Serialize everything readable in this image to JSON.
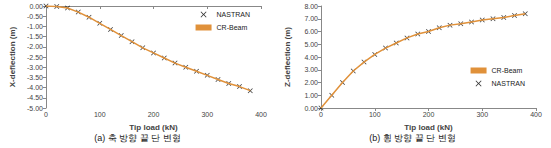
{
  "chart_data": [
    {
      "type": "line",
      "title": "(a) 축 방향 끝 단 변형",
      "x_label": "Tip load (kN)",
      "y_label": "X-deflection (m)",
      "xlim": [
        0,
        400
      ],
      "xticks": [
        0,
        100,
        200,
        300,
        400
      ],
      "ylim": [
        -5,
        0
      ],
      "yticks": [
        {
          "value": -5,
          "label": "-5.00"
        },
        {
          "value": -4.5,
          "label": "-4.50"
        },
        {
          "value": -4,
          "label": "-4.00"
        },
        {
          "value": -3.5,
          "label": "-3.50"
        },
        {
          "value": -3,
          "label": "-3.00"
        },
        {
          "value": -2.5,
          "label": "-2.50"
        },
        {
          "value": -2,
          "label": "-2.00"
        },
        {
          "value": -1.5,
          "label": "-1.50"
        },
        {
          "value": -1,
          "label": "-1.00"
        },
        {
          "value": -0.5,
          "label": "-0.50"
        },
        {
          "value": 0,
          "label": "0.00"
        }
      ],
      "grid": false,
      "legend": "upper right",
      "x": [
        0,
        20,
        40,
        60,
        80,
        100,
        120,
        140,
        160,
        180,
        200,
        220,
        240,
        260,
        280,
        300,
        320,
        340,
        360,
        380
      ],
      "series": [
        {
          "name": "NASTRAN",
          "type": "scatter",
          "marker": "x",
          "color": "#000000",
          "values": [
            0,
            -0.02,
            -0.1,
            -0.3,
            -0.55,
            -0.85,
            -1.15,
            -1.45,
            -1.75,
            -2.05,
            -2.3,
            -2.55,
            -2.8,
            -3.0,
            -3.2,
            -3.4,
            -3.6,
            -3.8,
            -3.95,
            -4.15
          ]
        },
        {
          "name": "CR-Beam",
          "type": "line",
          "line_style": "solid",
          "color": "#e0913a",
          "values": [
            0,
            -0.02,
            -0.1,
            -0.3,
            -0.55,
            -0.85,
            -1.15,
            -1.45,
            -1.75,
            -2.05,
            -2.3,
            -2.55,
            -2.8,
            -3.0,
            -3.2,
            -3.4,
            -3.6,
            -3.8,
            -3.95,
            -4.15
          ]
        }
      ]
    },
    {
      "type": "line",
      "title": "(b) 횡 방향 끝 단 변형",
      "x_label": "Tip load (kN)",
      "y_label": "Z-deflection (m)",
      "xlim": [
        0,
        400
      ],
      "xticks": [
        0,
        100,
        200,
        300,
        400
      ],
      "ylim": [
        0,
        8
      ],
      "yticks": [
        {
          "value": 0,
          "label": "0.00"
        },
        {
          "value": 1,
          "label": "1.00"
        },
        {
          "value": 2,
          "label": "2.00"
        },
        {
          "value": 3,
          "label": "3.00"
        },
        {
          "value": 4,
          "label": "4.00"
        },
        {
          "value": 5,
          "label": "5.00"
        },
        {
          "value": 6,
          "label": "6.00"
        },
        {
          "value": 7,
          "label": "7.00"
        },
        {
          "value": 8,
          "label": "8.00"
        }
      ],
      "grid": false,
      "legend": "lower right",
      "x": [
        0,
        20,
        40,
        60,
        80,
        100,
        120,
        140,
        160,
        180,
        200,
        220,
        240,
        260,
        280,
        300,
        320,
        340,
        360,
        380
      ],
      "series": [
        {
          "name": "CR-Beam",
          "type": "line",
          "line_style": "solid",
          "color": "#e0913a",
          "values": [
            0,
            1.0,
            2.0,
            2.9,
            3.6,
            4.2,
            4.7,
            5.1,
            5.5,
            5.8,
            6.0,
            6.3,
            6.5,
            6.6,
            6.75,
            6.9,
            7.0,
            7.1,
            7.25,
            7.4
          ]
        },
        {
          "name": "NASTRAN",
          "type": "scatter",
          "marker": "x",
          "color": "#000000",
          "values": [
            0,
            1.0,
            2.0,
            2.9,
            3.6,
            4.2,
            4.7,
            5.1,
            5.5,
            5.8,
            6.0,
            6.3,
            6.5,
            6.6,
            6.75,
            6.9,
            7.0,
            7.1,
            7.25,
            7.4
          ]
        }
      ]
    }
  ]
}
